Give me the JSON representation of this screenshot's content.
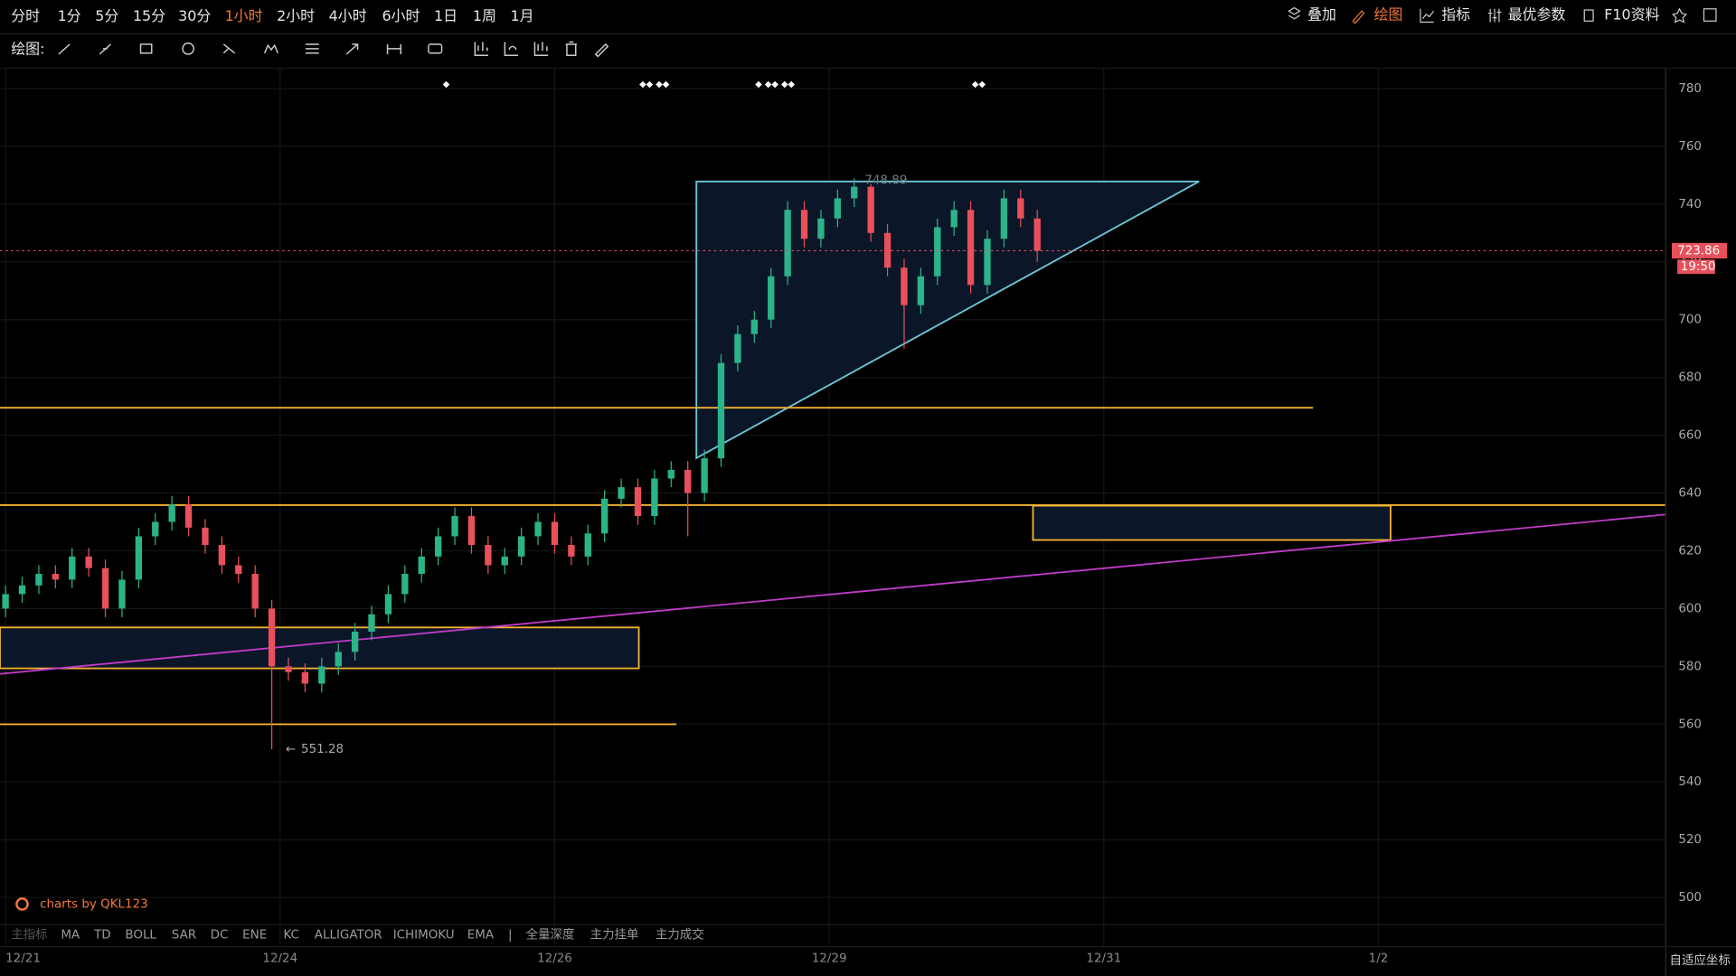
{
  "toolbar": {
    "periods": [
      "分时",
      "1分",
      "5分",
      "15分",
      "30分",
      "1小时",
      "2小时",
      "4小时",
      "6小时",
      "1日",
      "1周",
      "1月"
    ],
    "active_color": "#f0783c",
    "tools": [
      "叠加",
      "绘图",
      "指标",
      "最优参数",
      "F10资料"
    ],
    "draw_label": "绘图:"
  },
  "chart_data": {
    "type": "candlestick",
    "up_color": "#2bb38a",
    "down_color": "#e8505b",
    "grid": true,
    "xlim": [
      0,
      396
    ],
    "ylim": [
      500,
      780
    ],
    "xticks": [
      {
        "value": 0,
        "label": "12/21"
      },
      {
        "value": 66,
        "label": "12/24"
      },
      {
        "value": 132,
        "label": "12/26"
      },
      {
        "value": 198,
        "label": "12/29"
      },
      {
        "value": 264,
        "label": "12/31"
      },
      {
        "value": 330,
        "label": "1/2"
      }
    ],
    "yticks": [
      500,
      520,
      540,
      560,
      580,
      600,
      620,
      640,
      660,
      680,
      700,
      720,
      740,
      760,
      780
    ],
    "candles": [
      [
        0,
        600,
        608,
        597,
        605
      ],
      [
        4,
        605,
        611,
        602,
        608
      ],
      [
        8,
        608,
        615,
        605,
        612
      ],
      [
        12,
        612,
        615,
        607,
        610
      ],
      [
        16,
        610,
        621,
        607,
        618
      ],
      [
        20,
        618,
        621,
        611,
        614
      ],
      [
        24,
        614,
        617,
        597,
        600
      ],
      [
        28,
        600,
        613,
        597,
        610
      ],
      [
        32,
        610,
        628,
        607,
        625
      ],
      [
        36,
        625,
        633,
        622,
        630
      ],
      [
        40,
        630,
        639,
        627,
        636
      ],
      [
        44,
        636,
        639,
        625,
        628
      ],
      [
        48,
        628,
        631,
        619,
        622
      ],
      [
        52,
        622,
        625,
        612,
        615
      ],
      [
        56,
        615,
        618,
        609,
        612
      ],
      [
        60,
        612,
        615,
        597,
        600
      ],
      [
        64,
        600,
        603,
        551.28,
        580
      ],
      [
        68,
        580,
        583,
        575,
        578
      ],
      [
        72,
        578,
        581,
        571,
        574
      ],
      [
        76,
        574,
        583,
        571,
        580
      ],
      [
        80,
        580,
        588,
        577,
        585
      ],
      [
        84,
        585,
        595,
        582,
        592
      ],
      [
        88,
        592,
        601,
        589,
        598
      ],
      [
        92,
        598,
        608,
        595,
        605
      ],
      [
        96,
        605,
        615,
        602,
        612
      ],
      [
        100,
        612,
        621,
        609,
        618
      ],
      [
        104,
        618,
        628,
        615,
        625
      ],
      [
        108,
        625,
        635,
        622,
        632
      ],
      [
        112,
        632,
        635,
        619,
        622
      ],
      [
        116,
        622,
        625,
        612,
        615
      ],
      [
        120,
        615,
        621,
        612,
        618
      ],
      [
        124,
        618,
        628,
        615,
        625
      ],
      [
        128,
        625,
        633,
        622,
        630
      ],
      [
        132,
        630,
        633,
        619,
        622
      ],
      [
        136,
        622,
        625,
        615,
        618
      ],
      [
        140,
        618,
        629,
        615,
        626
      ],
      [
        144,
        626,
        641,
        623,
        638
      ],
      [
        148,
        638,
        645,
        635,
        642
      ],
      [
        152,
        642,
        645,
        629,
        632
      ],
      [
        156,
        632,
        648,
        629,
        645
      ],
      [
        160,
        645,
        651,
        642,
        648
      ],
      [
        164,
        648,
        651,
        625,
        640
      ],
      [
        168,
        640,
        655,
        637,
        652
      ],
      [
        172,
        652,
        688,
        649,
        685
      ],
      [
        176,
        685,
        698,
        682,
        695
      ],
      [
        180,
        695,
        703,
        692,
        700
      ],
      [
        184,
        700,
        718,
        697,
        715
      ],
      [
        188,
        715,
        741,
        712,
        738
      ],
      [
        192,
        738,
        741,
        725,
        728
      ],
      [
        196,
        728,
        738,
        725,
        735
      ],
      [
        200,
        735,
        745,
        732,
        742
      ],
      [
        204,
        742,
        748.89,
        739,
        746
      ],
      [
        208,
        746,
        747,
        727,
        730
      ],
      [
        212,
        730,
        733,
        715,
        718
      ],
      [
        216,
        718,
        721,
        690,
        705
      ],
      [
        220,
        705,
        718,
        702,
        715
      ],
      [
        224,
        715,
        735,
        712,
        732
      ],
      [
        228,
        732,
        741,
        729,
        738
      ],
      [
        232,
        738,
        741,
        709,
        712
      ],
      [
        236,
        712,
        731,
        709,
        728
      ],
      [
        240,
        728,
        745,
        725,
        742
      ],
      [
        244,
        742,
        745,
        732,
        735
      ],
      [
        248,
        735,
        738,
        720,
        723.86
      ]
    ],
    "last_price": 723.86,
    "last_time": "19:50",
    "high_label": "748.89",
    "low_label": "551.28"
  },
  "indicators": {
    "label": "主指标",
    "items": [
      "MA",
      "TD",
      "BOLL",
      "SAR",
      "DC",
      "ENE",
      "KC",
      "ALLIGATOR",
      "ICHIMOKU",
      "EMA"
    ],
    "depth": [
      "全量深度",
      "主力挂单",
      "主力成交"
    ]
  },
  "watermark": "charts by QKL123",
  "axis_mode": "自适应坐标"
}
